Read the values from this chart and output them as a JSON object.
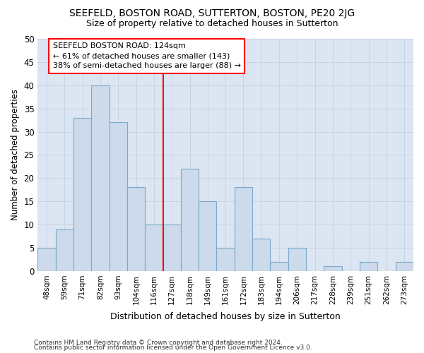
{
  "title": "SEEFELD, BOSTON ROAD, SUTTERTON, BOSTON, PE20 2JG",
  "subtitle": "Size of property relative to detached houses in Sutterton",
  "xlabel": "Distribution of detached houses by size in Sutterton",
  "ylabel": "Number of detached properties",
  "categories": [
    "48sqm",
    "59sqm",
    "71sqm",
    "82sqm",
    "93sqm",
    "104sqm",
    "116sqm",
    "127sqm",
    "138sqm",
    "149sqm",
    "161sqm",
    "172sqm",
    "183sqm",
    "194sqm",
    "206sqm",
    "217sqm",
    "228sqm",
    "239sqm",
    "251sqm",
    "262sqm",
    "273sqm"
  ],
  "values": [
    5,
    9,
    33,
    40,
    32,
    18,
    10,
    10,
    22,
    15,
    5,
    18,
    7,
    2,
    5,
    0,
    1,
    0,
    2,
    0,
    2
  ],
  "bar_color": "#ccdaeb",
  "bar_edge_color": "#7aaac8",
  "grid_color": "#c8d4e4",
  "background_color": "#dce6f2",
  "fig_background_color": "#ffffff",
  "property_line_index": 7,
  "annotation_line1": "SEEFELD BOSTON ROAD: 124sqm",
  "annotation_line2": "← 61% of detached houses are smaller (143)",
  "annotation_line3": "38% of semi-detached houses are larger (88) →",
  "ylim": [
    0,
    50
  ],
  "yticks": [
    0,
    5,
    10,
    15,
    20,
    25,
    30,
    35,
    40,
    45,
    50
  ],
  "footnote1": "Contains HM Land Registry data © Crown copyright and database right 2024.",
  "footnote2": "Contains public sector information licensed under the Open Government Licence v3.0."
}
